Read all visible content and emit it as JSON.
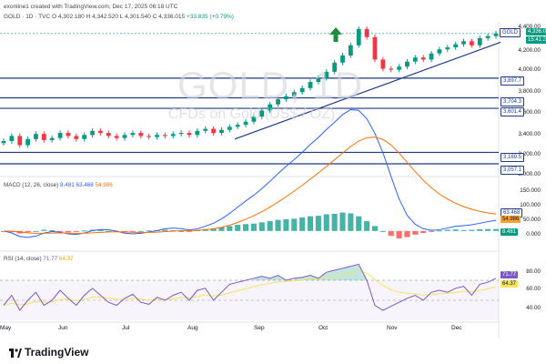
{
  "header": {
    "author_line": "exonline1 created with TradingView.com, Dec 17, 2025 06:18 UTC",
    "symbol_line": "GOLD · 1D · TVC",
    "ohlc": "O 4,302.180  H 4,342.520  L 4,301.540  C 4,336.015",
    "change": "+33.835 (+0.79%)"
  },
  "watermark": {
    "symbol": "GOLD, 1D",
    "subtitle": "CFDs on Gold (US$ / OZ)"
  },
  "price_axis": {
    "ticks": [
      "4,400.00",
      "4,200.00",
      "4,000.00",
      "3,800.00",
      "3,600.00",
      "3,400.00",
      "3,200.00",
      "3,000.00"
    ],
    "current_price_tag": "4,336.0",
    "current_sub_tag": "15:41:2",
    "symbol_tag": "GOLD",
    "level_tags": [
      "3,897.7",
      "3,704.3",
      "3,601.4",
      "3,169.5",
      "3,057.1"
    ]
  },
  "macd": {
    "title": "MACD (12, 26, close)",
    "values": [
      "8.481",
      "63.468",
      "54.986"
    ],
    "ticks": [
      "150.000",
      "100.000",
      "50.000",
      "0.000"
    ],
    "tags": [
      "63.468",
      "54.986",
      "8.481"
    ]
  },
  "rsi": {
    "title": "RSI (14, close)",
    "values": [
      "71.77",
      "64.37"
    ],
    "ticks": [
      "80.00",
      "60.00",
      "40.00"
    ],
    "tags": [
      "71.77",
      "64.37"
    ]
  },
  "xaxis": {
    "labels": [
      "May",
      "Jun",
      "Jul",
      "Aug",
      "Sep",
      "Oct",
      "Nov",
      "Dec"
    ]
  },
  "footer": {
    "brand": "TradingView"
  },
  "colors": {
    "up": "#089981",
    "down": "#f23645",
    "trend": "#1e3a8a",
    "macd": "#2962ff",
    "signal": "#ff6d00",
    "rsi": "#7e57c2",
    "rsi_ma": "#f4e265",
    "arrow": "#1b8e3b"
  },
  "chart_data": {
    "type": "candlestick",
    "symbol": "GOLD",
    "timeframe": "1D",
    "x": [
      "May",
      "Jun",
      "Jul",
      "Aug",
      "Sep",
      "Oct",
      "Nov",
      "Dec"
    ],
    "close_path": [
      3280,
      3330,
      3240,
      3300,
      3350,
      3290,
      3310,
      3360,
      3330,
      3300,
      3340,
      3380,
      3360,
      3330,
      3310,
      3340,
      3360,
      3330,
      3320,
      3340,
      3330,
      3350,
      3360,
      3340,
      3380,
      3400,
      3360,
      3390,
      3420,
      3440,
      3470,
      3520,
      3580,
      3640,
      3690,
      3720,
      3760,
      3800,
      3860,
      3900,
      3960,
      4050,
      4120,
      4220,
      4380,
      4300,
      4080,
      3990,
      3980,
      4010,
      4060,
      4100,
      4080,
      4140,
      4180,
      4200,
      4230,
      4260,
      4220,
      4290,
      4310,
      4336
    ],
    "horizontal_levels": [
      3897.7,
      3704.3,
      3601.4,
      3169.5,
      3057.1
    ],
    "ylim": [
      2950,
      4450
    ],
    "macd": {
      "hist": [
        0,
        -5,
        -10,
        -5,
        0,
        5,
        3,
        -2,
        -5,
        -3,
        2,
        5,
        3,
        0,
        -3,
        -5,
        -3,
        0,
        2,
        3,
        5,
        3,
        0,
        -2,
        3,
        8,
        10,
        15,
        20,
        25,
        28,
        30,
        35,
        40,
        45,
        48,
        50,
        55,
        60,
        62,
        68,
        70,
        75,
        72,
        60,
        40,
        20,
        0,
        -20,
        -30,
        -25,
        -15,
        -8,
        -3,
        2,
        5,
        6,
        4,
        5,
        7,
        8,
        8
      ],
      "ylim": [
        -60,
        170
      ]
    },
    "rsi": {
      "values": [
        45,
        55,
        40,
        50,
        58,
        45,
        50,
        60,
        52,
        45,
        55,
        62,
        55,
        48,
        45,
        52,
        56,
        48,
        46,
        53,
        50,
        55,
        58,
        50,
        60,
        62,
        50,
        58,
        66,
        68,
        70,
        72,
        74,
        72,
        75,
        70,
        72,
        73,
        75,
        72,
        78,
        80,
        82,
        84,
        86,
        70,
        45,
        40,
        44,
        48,
        52,
        55,
        50,
        58,
        60,
        58,
        62,
        64,
        55,
        66,
        68,
        72
      ],
      "ylim": [
        30,
        90
      ],
      "overbought": 70,
      "oversold": 30
    }
  }
}
